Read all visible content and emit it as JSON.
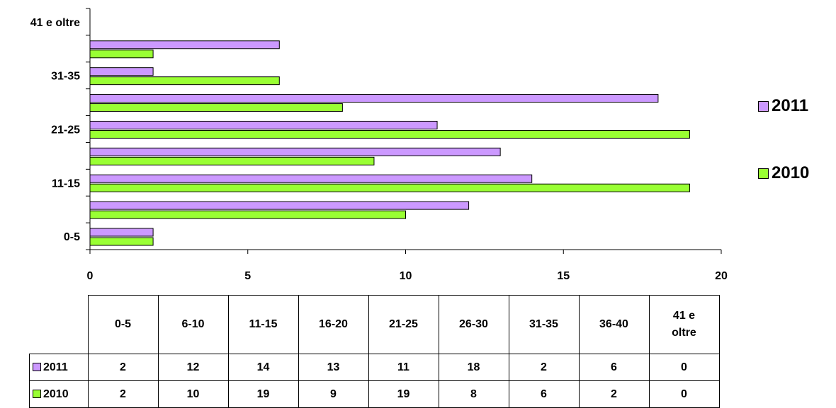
{
  "colors": {
    "2011": "#cc99ff",
    "2010": "#99ff33"
  },
  "chart_data": {
    "type": "bar",
    "orientation": "horizontal",
    "categories": [
      "0-5",
      "6-10",
      "11-15",
      "16-20",
      "21-25",
      "26-30",
      "31-35",
      "36-40",
      "41 e oltre"
    ],
    "series": [
      {
        "name": "2011",
        "values": [
          2,
          12,
          14,
          13,
          11,
          18,
          2,
          6,
          0
        ]
      },
      {
        "name": "2010",
        "values": [
          2,
          10,
          19,
          9,
          19,
          8,
          6,
          2,
          0
        ]
      }
    ],
    "category_tick_labels": [
      "0-5",
      "",
      "11-15",
      "",
      "21-25",
      "",
      "31-35",
      "",
      "41 e oltre"
    ],
    "xlim": [
      0,
      20
    ],
    "x_ticks": [
      0,
      5,
      10,
      15,
      20
    ],
    "grid": false,
    "legend_position": "right",
    "data_table": true
  },
  "table": {
    "columns": [
      "0-5",
      "6-10",
      "11-15",
      "16-20",
      "21-25",
      "26-30",
      "31-35",
      "36-40",
      "41 e oltre"
    ],
    "rows": [
      {
        "label": "2011",
        "values": [
          "2",
          "12",
          "14",
          "13",
          "11",
          "18",
          "2",
          "6",
          "0"
        ]
      },
      {
        "label": "2010",
        "values": [
          "2",
          "10",
          "19",
          "9",
          "19",
          "8",
          "6",
          "2",
          "0"
        ]
      }
    ]
  }
}
